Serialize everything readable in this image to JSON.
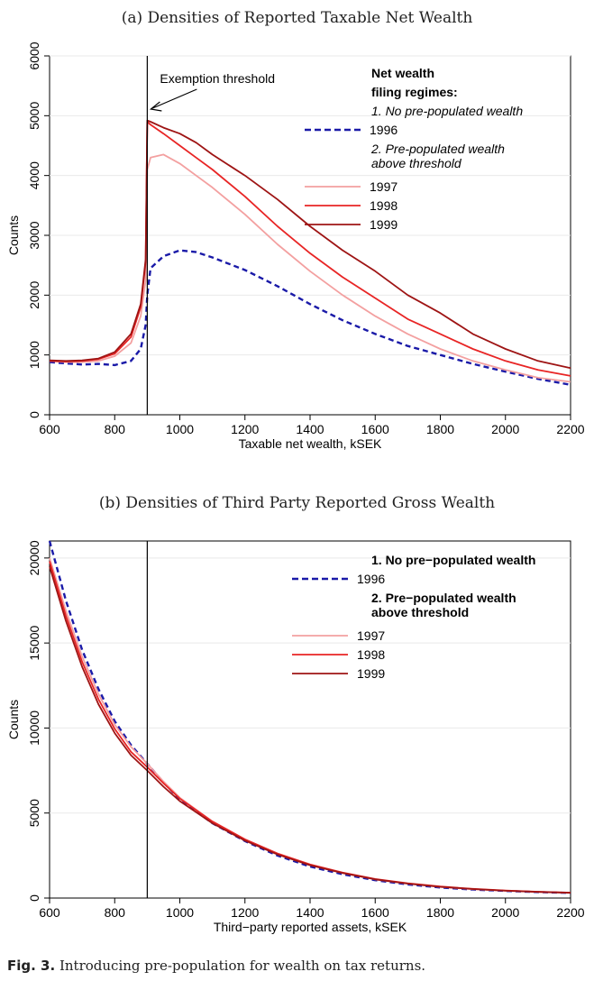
{
  "chart_data": [
    {
      "type": "line",
      "panel_title": "(a) Densities of Reported Taxable Net Wealth",
      "xlabel": "Taxable net wealth, kSEK",
      "ylabel": "Counts",
      "xlim": [
        600,
        2200
      ],
      "ylim": [
        0,
        6000
      ],
      "xticks": [
        "600",
        "800",
        "1000",
        "1200",
        "1400",
        "1600",
        "1800",
        "2000",
        "2200"
      ],
      "yticks": [
        "0",
        "1000",
        "2000",
        "3000",
        "4000",
        "5000",
        "6000"
      ],
      "vline": {
        "x": 900,
        "label": "Exemption threshold"
      },
      "legend": {
        "heading": "Net wealth",
        "heading2": "filing regimes:",
        "group1": "1. No pre-populated wealth",
        "group2_line1": "2. Pre-populated wealth",
        "group2_line2": "above threshold"
      },
      "x": [
        600,
        650,
        700,
        750,
        800,
        850,
        880,
        895,
        900,
        910,
        950,
        1000,
        1050,
        1100,
        1200,
        1300,
        1400,
        1500,
        1600,
        1700,
        1800,
        1900,
        2000,
        2100,
        2200
      ],
      "series": [
        {
          "name": "1996",
          "color": "#1a1aa8",
          "dash": true,
          "values": [
            880,
            860,
            840,
            850,
            830,
            900,
            1100,
            1500,
            2000,
            2450,
            2650,
            2750,
            2720,
            2630,
            2420,
            2150,
            1850,
            1580,
            1350,
            1150,
            1000,
            850,
            720,
            600,
            500
          ]
        },
        {
          "name": "1997",
          "color": "#f3a0a0",
          "dash": false,
          "values": [
            900,
            880,
            880,
            900,
            980,
            1200,
            1650,
            2250,
            4100,
            4300,
            4350,
            4200,
            4000,
            3800,
            3350,
            2850,
            2400,
            2000,
            1650,
            1350,
            1100,
            900,
            750,
            620,
            550
          ]
        },
        {
          "name": "1998",
          "color": "#e82525",
          "dash": false,
          "values": [
            900,
            890,
            900,
            930,
            1020,
            1300,
            1800,
            2550,
            4900,
            4850,
            4700,
            4500,
            4300,
            4100,
            3650,
            3150,
            2700,
            2300,
            1950,
            1600,
            1350,
            1100,
            900,
            750,
            650
          ]
        },
        {
          "name": "1999",
          "color": "#9e1414",
          "dash": false,
          "values": [
            910,
            900,
            910,
            940,
            1050,
            1350,
            1850,
            2600,
            4920,
            4900,
            4800,
            4700,
            4550,
            4350,
            4000,
            3600,
            3150,
            2750,
            2400,
            2000,
            1700,
            1350,
            1100,
            900,
            780
          ]
        }
      ]
    },
    {
      "type": "line",
      "panel_title": "(b) Densities of Third Party Reported Gross Wealth",
      "xlabel": "Third−party reported assets, kSEK",
      "ylabel": "Counts",
      "xlim": [
        600,
        2200
      ],
      "ylim": [
        0,
        21000
      ],
      "xticks": [
        "600",
        "800",
        "1000",
        "1200",
        "1400",
        "1600",
        "1800",
        "2000",
        "2200"
      ],
      "yticks": [
        "0",
        "5000",
        "10000",
        "15000",
        "20000"
      ],
      "vline": {
        "x": 900,
        "label": ""
      },
      "legend": {
        "heading": "",
        "heading2": "",
        "group1": "1. No pre−populated wealth",
        "group2_line1": "2. Pre−populated wealth",
        "group2_line2": "above threshold"
      },
      "x": [
        600,
        650,
        700,
        750,
        800,
        850,
        900,
        950,
        1000,
        1100,
        1200,
        1300,
        1400,
        1500,
        1600,
        1700,
        1800,
        1900,
        2000,
        2100,
        2200
      ],
      "series": [
        {
          "name": "1996",
          "color": "#1a1aa8",
          "dash": true,
          "values": [
            21000,
            17500,
            14600,
            12300,
            10400,
            9000,
            7900,
            6800,
            5800,
            4400,
            3350,
            2500,
            1850,
            1400,
            1050,
            800,
            620,
            500,
            420,
            350,
            300
          ]
        },
        {
          "name": "1997",
          "color": "#f3a0a0",
          "dash": false,
          "values": [
            20000,
            16900,
            14200,
            12000,
            10200,
            8900,
            7900,
            6850,
            5900,
            4500,
            3450,
            2600,
            1950,
            1480,
            1100,
            850,
            660,
            520,
            430,
            360,
            310
          ]
        },
        {
          "name": "1998",
          "color": "#e82525",
          "dash": false,
          "values": [
            19800,
            16600,
            13900,
            11700,
            9950,
            8600,
            7700,
            6750,
            5850,
            4500,
            3450,
            2620,
            1980,
            1500,
            1120,
            870,
            680,
            540,
            440,
            370,
            320
          ]
        },
        {
          "name": "1999",
          "color": "#9e1414",
          "dash": false,
          "values": [
            19500,
            16300,
            13600,
            11400,
            9700,
            8400,
            7500,
            6550,
            5700,
            4400,
            3380,
            2560,
            1930,
            1470,
            1100,
            850,
            660,
            530,
            430,
            360,
            310
          ]
        }
      ]
    }
  ],
  "caption": {
    "label": "Fig. 3.",
    "text": "Introducing pre-population for wealth on tax returns."
  }
}
